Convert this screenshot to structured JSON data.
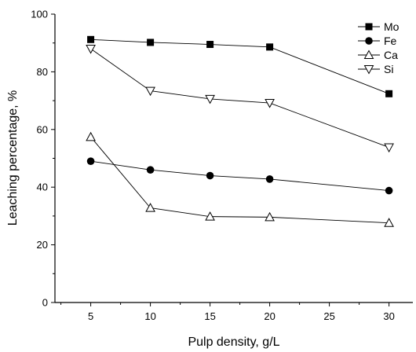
{
  "chart_data": {
    "type": "line",
    "xlabel": "Pulp density, g/L",
    "ylabel": "Leaching percentage, %",
    "xlim": [
      2,
      32
    ],
    "ylim": [
      0,
      100
    ],
    "x_ticks": [
      5,
      10,
      15,
      20,
      25,
      30
    ],
    "y_ticks": [
      0,
      20,
      40,
      60,
      80,
      100
    ],
    "grid": false,
    "legend_position": "top-right",
    "x": [
      5,
      10,
      15,
      20,
      30
    ],
    "series": [
      {
        "name": "Mo",
        "marker": "square",
        "values": [
          91.2,
          90.2,
          89.5,
          88.6,
          72.4
        ]
      },
      {
        "name": "Fe",
        "marker": "circle",
        "values": [
          49.0,
          46.0,
          44.0,
          42.8,
          38.8
        ]
      },
      {
        "name": "Ca",
        "marker": "triangle-up",
        "values": [
          57.4,
          32.8,
          29.8,
          29.6,
          27.6
        ]
      },
      {
        "name": "Si",
        "marker": "triangle-down",
        "values": [
          88.0,
          73.4,
          70.6,
          69.2,
          53.8
        ]
      }
    ]
  }
}
